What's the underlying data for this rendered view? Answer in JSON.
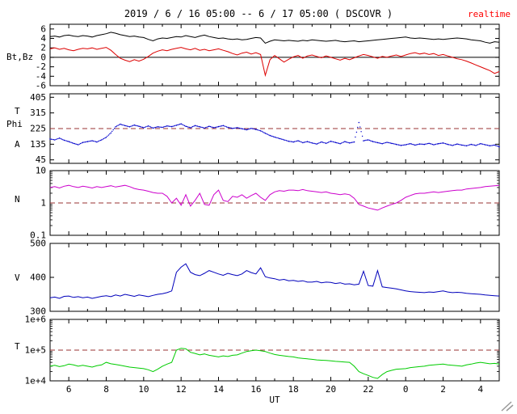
{
  "header": {
    "title": "2019 / 6 / 16  05:00 -- 6 / 17  05:00 ( DSCOVR )",
    "realtime_label": "realtime",
    "realtime_color": "#ff0000"
  },
  "chart_data": {
    "type": "line",
    "title": "2019 / 6 / 16  05:00 -- 6 / 17  05:00 ( DSCOVR )",
    "source": "DSCOVR",
    "refline_color": "#993333",
    "x": {
      "label": "UT",
      "start": 5,
      "end": 29,
      "step": 0.25,
      "major_ticks": [
        6,
        8,
        10,
        12,
        14,
        16,
        18,
        20,
        22,
        24,
        26,
        28
      ],
      "major_tick_labels": [
        "6",
        "8",
        "10",
        "12",
        "14",
        "16",
        "18",
        "20",
        "22",
        "0",
        "2",
        "4"
      ],
      "minor_step": 1
    },
    "panels": [
      {
        "name": "bt-bz",
        "labels": [
          "Bt,Bz"
        ],
        "scale": "linear",
        "ymin": -6,
        "ymax": 7,
        "yticks": [
          6,
          4,
          2,
          0,
          -2,
          -4,
          -6
        ],
        "ytick_labels": [
          "6",
          "4",
          "2",
          "0",
          "-2",
          "-4",
          "-6"
        ],
        "zero_line": 0,
        "series": [
          "Bt",
          "Bz"
        ]
      },
      {
        "name": "phi",
        "labels": [
          "T",
          "Phi",
          "A"
        ],
        "scale": "linear",
        "ymin": 25,
        "ymax": 425,
        "yticks": [
          405,
          315,
          225,
          135,
          45
        ],
        "ytick_labels": [
          "405",
          "315",
          "225",
          "135",
          "45"
        ],
        "refline": 225,
        "series": [
          "Phi"
        ]
      },
      {
        "name": "n",
        "labels": [
          "N"
        ],
        "scale": "log",
        "ymin": 0.1,
        "ymax": 10,
        "yticks": [
          10,
          1,
          0.1
        ],
        "ytick_labels": [
          "10",
          "1",
          "0.1"
        ],
        "refline": 1,
        "series": [
          "N"
        ]
      },
      {
        "name": "v",
        "labels": [
          "V"
        ],
        "scale": "linear",
        "ymin": 300,
        "ymax": 500,
        "yticks": [
          500,
          400,
          300
        ],
        "ytick_labels": [
          "500",
          "400",
          "300"
        ],
        "series": [
          "V"
        ]
      },
      {
        "name": "t",
        "labels": [
          "T"
        ],
        "scale": "log",
        "ymin": 10000,
        "ymax": 1000000,
        "yticks": [
          1000000,
          100000,
          10000
        ],
        "ytick_labels": [
          "1e+6",
          "1e+5",
          "1e+4"
        ],
        "refline": 100000,
        "series": [
          "T"
        ]
      }
    ],
    "series": {
      "Bt": {
        "color": "#000000",
        "style": "line",
        "values": [
          4.4,
          4.5,
          4.3,
          4.6,
          4.7,
          4.5,
          4.4,
          4.6,
          4.5,
          4.3,
          4.6,
          4.8,
          5.0,
          5.3,
          5.1,
          4.8,
          4.6,
          4.4,
          4.5,
          4.3,
          4.2,
          3.8,
          3.5,
          3.9,
          4.1,
          4.0,
          4.2,
          4.4,
          4.3,
          4.6,
          4.4,
          4.2,
          4.5,
          4.7,
          4.4,
          4.2,
          4.0,
          4.1,
          3.9,
          3.8,
          3.9,
          3.7,
          3.8,
          4.0,
          4.2,
          4.1,
          3.0,
          3.4,
          3.7,
          3.6,
          3.5,
          3.6,
          3.5,
          3.4,
          3.6,
          3.5,
          3.7,
          3.6,
          3.5,
          3.4,
          3.5,
          3.6,
          3.4,
          3.3,
          3.4,
          3.5,
          3.3,
          3.4,
          3.5,
          3.6,
          3.7,
          3.8,
          3.9,
          4.0,
          4.1,
          4.2,
          4.3,
          4.1,
          4.0,
          4.1,
          4.0,
          3.9,
          3.8,
          3.9,
          3.8,
          3.9,
          4.0,
          4.1,
          4.0,
          3.9,
          3.7,
          3.6,
          3.5,
          3.2,
          3.0,
          3.3,
          3.2
        ]
      },
      "Bz": {
        "color": "#dd0000",
        "style": "line",
        "values": [
          1.8,
          2.0,
          1.7,
          1.9,
          1.6,
          1.4,
          1.7,
          1.9,
          1.8,
          2.0,
          1.7,
          1.9,
          2.1,
          1.5,
          0.6,
          -0.2,
          -0.6,
          -0.9,
          -0.5,
          -0.8,
          -0.4,
          0.2,
          0.9,
          1.3,
          1.6,
          1.4,
          1.7,
          1.9,
          2.1,
          1.8,
          1.6,
          1.9,
          1.5,
          1.7,
          1.4,
          1.6,
          1.8,
          1.5,
          1.2,
          0.8,
          0.5,
          0.9,
          1.1,
          0.7,
          1.0,
          0.6,
          -3.8,
          -0.5,
          0.4,
          -0.3,
          -1.0,
          -0.4,
          0.1,
          0.4,
          -0.2,
          0.3,
          0.5,
          0.2,
          -0.1,
          0.3,
          0.0,
          -0.3,
          -0.6,
          -0.2,
          -0.5,
          -0.1,
          0.3,
          0.6,
          0.4,
          0.1,
          -0.2,
          0.2,
          0.0,
          0.3,
          0.5,
          0.2,
          0.5,
          0.8,
          1.0,
          0.7,
          0.9,
          0.6,
          0.8,
          0.4,
          0.6,
          0.3,
          0.0,
          -0.3,
          -0.5,
          -0.8,
          -1.2,
          -1.6,
          -2.0,
          -2.4,
          -2.8,
          -3.4,
          -3.0
        ]
      },
      "Phi": {
        "color": "#0000cc",
        "style": "dots",
        "values": [
          165,
          160,
          170,
          158,
          150,
          140,
          132,
          145,
          150,
          155,
          148,
          160,
          175,
          200,
          235,
          250,
          242,
          235,
          245,
          238,
          230,
          240,
          228,
          235,
          232,
          240,
          236,
          244,
          252,
          238,
          230,
          242,
          235,
          228,
          238,
          230,
          236,
          242,
          232,
          226,
          230,
          224,
          218,
          226,
          220,
          212,
          198,
          185,
          176,
          168,
          160,
          152,
          148,
          155,
          144,
          150,
          142,
          136,
          148,
          140,
          152,
          145,
          138,
          150,
          142,
          148,
          260,
          155,
          160,
          150,
          144,
          138,
          146,
          140,
          134,
          128,
          132,
          138,
          130,
          136,
          134,
          140,
          132,
          138,
          142,
          134,
          128,
          136,
          130,
          126,
          134,
          128,
          138,
          132,
          126,
          130,
          120
        ]
      },
      "N": {
        "color": "#cc00cc",
        "style": "line",
        "values": [
          3.0,
          3.2,
          2.9,
          3.3,
          3.5,
          3.2,
          3.0,
          3.3,
          3.1,
          2.9,
          3.2,
          3.0,
          3.2,
          3.4,
          3.1,
          3.3,
          3.5,
          3.2,
          2.8,
          2.6,
          2.5,
          2.3,
          2.1,
          2.0,
          2.0,
          1.6,
          1.0,
          1.4,
          0.85,
          1.8,
          0.8,
          1.2,
          2.0,
          0.9,
          0.85,
          1.8,
          2.5,
          1.2,
          1.1,
          1.6,
          1.5,
          1.8,
          1.4,
          1.7,
          2.0,
          1.5,
          1.2,
          1.8,
          2.2,
          2.4,
          2.3,
          2.5,
          2.5,
          2.4,
          2.6,
          2.4,
          2.3,
          2.2,
          2.1,
          2.2,
          2.0,
          1.9,
          1.8,
          1.9,
          1.8,
          1.4,
          0.9,
          0.8,
          0.7,
          0.65,
          0.6,
          0.7,
          0.8,
          0.9,
          1.0,
          1.2,
          1.5,
          1.7,
          1.9,
          2.0,
          2.0,
          2.1,
          2.2,
          2.1,
          2.2,
          2.3,
          2.4,
          2.5,
          2.5,
          2.7,
          2.8,
          2.9,
          3.0,
          3.2,
          3.3,
          3.4,
          3.5
        ]
      },
      "V": {
        "color": "#0000bb",
        "style": "line",
        "values": [
          340,
          342,
          338,
          344,
          345,
          341,
          343,
          340,
          342,
          338,
          341,
          344,
          346,
          343,
          348,
          345,
          350,
          347,
          344,
          348,
          346,
          343,
          347,
          350,
          352,
          355,
          360,
          415,
          430,
          440,
          415,
          408,
          405,
          412,
          420,
          415,
          410,
          406,
          412,
          408,
          405,
          410,
          420,
          414,
          410,
          428,
          402,
          398,
          396,
          392,
          394,
          390,
          391,
          388,
          390,
          386,
          386,
          388,
          384,
          386,
          385,
          382,
          384,
          380,
          381,
          378,
          380,
          418,
          376,
          374,
          420,
          372,
          370,
          368,
          366,
          363,
          360,
          358,
          357,
          356,
          355,
          357,
          356,
          358,
          360,
          357,
          355,
          356,
          355,
          353,
          352,
          351,
          350,
          348,
          347,
          346,
          345
        ]
      },
      "T": {
        "color": "#00cc00",
        "style": "line",
        "values": [
          30000,
          32000,
          29000,
          31000,
          35000,
          33000,
          30000,
          32000,
          30000,
          28000,
          31000,
          33000,
          40000,
          36000,
          34000,
          32000,
          30000,
          28000,
          27000,
          26000,
          25000,
          23000,
          20000,
          24000,
          30000,
          35000,
          40000,
          100000,
          115000,
          110000,
          85000,
          78000,
          70000,
          75000,
          68000,
          64000,
          60000,
          65000,
          62000,
          68000,
          70000,
          80000,
          90000,
          95000,
          100000,
          95000,
          90000,
          80000,
          72000,
          68000,
          65000,
          62000,
          60000,
          56000,
          54000,
          52000,
          50000,
          48000,
          47000,
          46000,
          45000,
          43000,
          42000,
          41000,
          40000,
          30000,
          20000,
          17000,
          15000,
          13000,
          12000,
          16000,
          20000,
          22000,
          24000,
          24500,
          25000,
          27000,
          28000,
          29000,
          30000,
          32000,
          33000,
          34000,
          35000,
          33000,
          32000,
          31000,
          30000,
          33000,
          35000,
          38000,
          40000,
          38000,
          36000,
          37000,
          35000
        ]
      }
    }
  }
}
